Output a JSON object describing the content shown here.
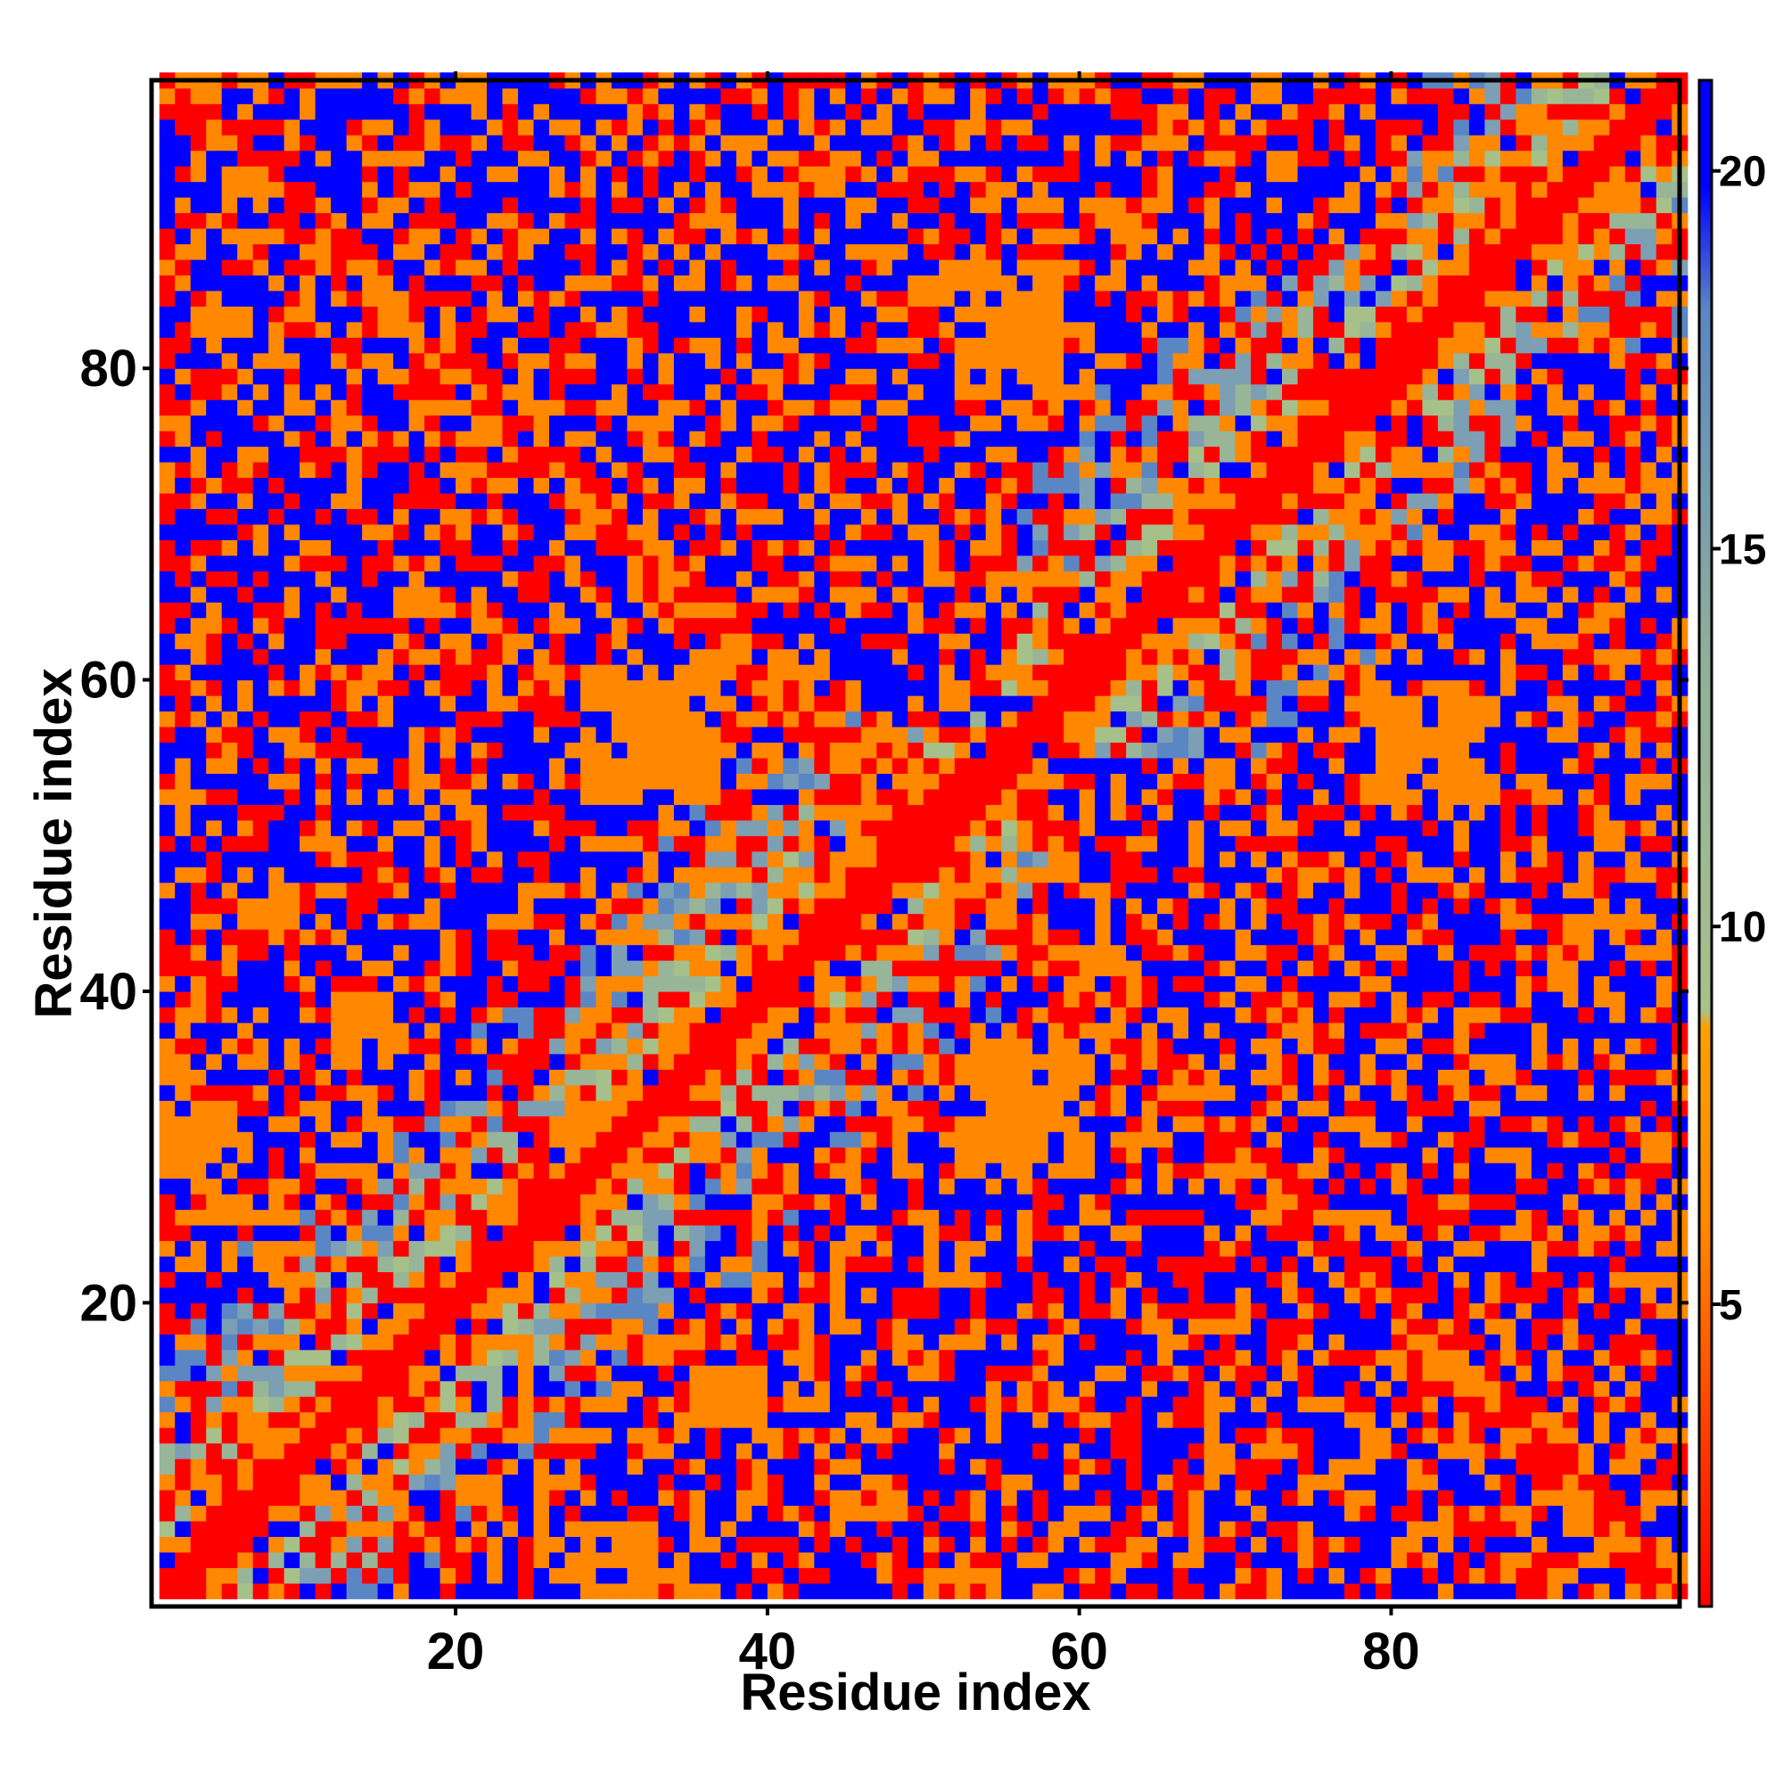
{
  "chart_data": {
    "type": "heatmap",
    "title": "",
    "xlabel": "Residue index",
    "ylabel": "Residue index",
    "n_residues": 98,
    "xlim": [
      1,
      98
    ],
    "ylim": [
      1,
      98
    ],
    "x_ticks": [
      20,
      40,
      60,
      80
    ],
    "y_ticks": [
      20,
      40,
      60,
      80
    ],
    "colorbar": {
      "ticks": [
        5,
        10,
        15,
        20
      ],
      "range": [
        1,
        21.2
      ],
      "colors": {
        "near": "#ff0000",
        "mid_orange": "#ff8800",
        "mid_green": "#a6c08a",
        "far_steel": "#5b86c4",
        "cutoff": "#0000ff"
      }
    },
    "values_description": "symmetric distance matrix, low along diagonal (~1-3) rising toward ~21 with distance; blue = beyond cutoff",
    "contact_features": [
      {
        "region": "diagonal",
        "x_range": [
          1,
          98
        ],
        "y_range": [
          1,
          98
        ],
        "value": 2
      },
      {
        "region": "near-diagonal band",
        "offset": 2,
        "value": 6
      },
      {
        "region": "helix contact",
        "x_range": [
          28,
          36
        ],
        "y_range": [
          52,
          60
        ],
        "value": 6
      },
      {
        "region": "helix contact",
        "x_range": [
          52,
          60
        ],
        "y_range": [
          28,
          36
        ],
        "value": 6
      },
      {
        "region": "contact",
        "x_range": [
          52,
          58
        ],
        "y_range": [
          78,
          86
        ],
        "value": 6
      },
      {
        "region": "contact",
        "x_range": [
          78,
          86
        ],
        "y_range": [
          52,
          58
        ],
        "value": 6
      },
      {
        "region": "contact",
        "x_range": [
          12,
          15
        ],
        "y_range": [
          35,
          39
        ],
        "value": 6
      },
      {
        "region": "contact",
        "x_range": [
          35,
          39
        ],
        "y_range": [
          12,
          15
        ],
        "value": 6
      },
      {
        "region": "contact",
        "x_range": [
          1,
          5
        ],
        "y_range": [
          28,
          32
        ],
        "value": 6
      },
      {
        "region": "contact",
        "x_range": [
          28,
          32
        ],
        "y_range": [
          1,
          5
        ],
        "value": 6
      }
    ],
    "far_blocks": [
      {
        "x_range": [
          7,
          27
        ],
        "y_range": [
          62,
          98
        ]
      },
      {
        "x_range": [
          62,
          98
        ],
        "y_range": [
          7,
          27
        ]
      },
      {
        "x_range": [
          35,
          60
        ],
        "y_range": [
          85,
          98
        ]
      },
      {
        "x_range": [
          85,
          98
        ],
        "y_range": [
          35,
          60
        ]
      },
      {
        "x_range": [
          58,
          76
        ],
        "y_range": [
          1,
          30
        ]
      },
      {
        "x_range": [
          1,
          30
        ],
        "y_range": [
          58,
          76
        ]
      },
      {
        "x_range": [
          64,
          80
        ],
        "y_range": [
          88,
          98
        ]
      },
      {
        "x_range": [
          88,
          98
        ],
        "y_range": [
          64,
          80
        ]
      },
      {
        "x_range": [
          58,
          68
        ],
        "y_range": [
          40,
          54
        ]
      },
      {
        "x_range": [
          40,
          54
        ],
        "y_range": [
          58,
          68
        ]
      }
    ]
  }
}
